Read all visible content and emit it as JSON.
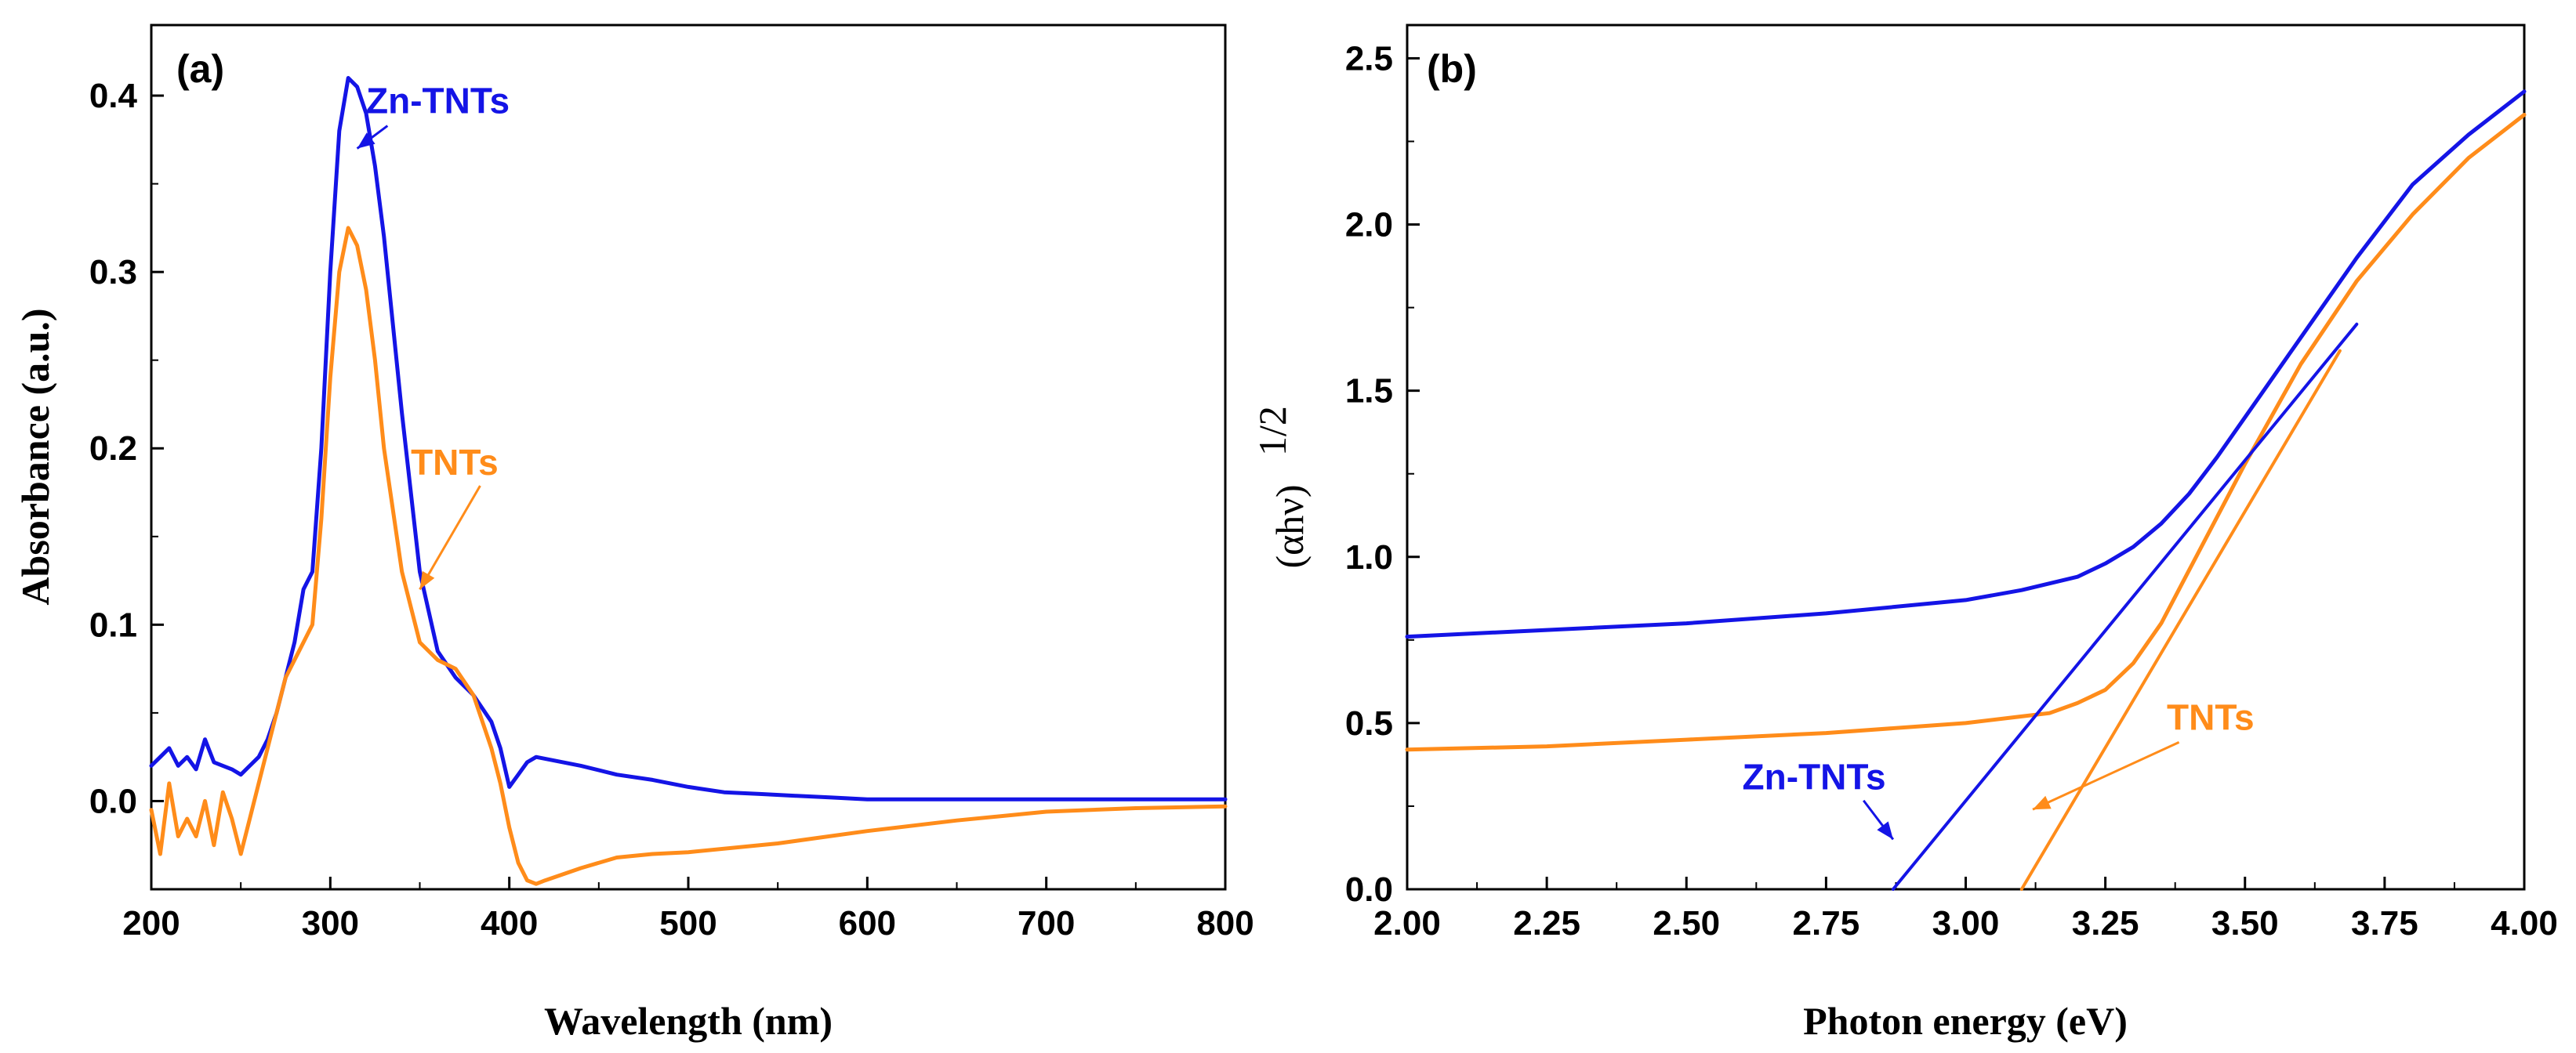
{
  "chart_data": [
    {
      "type": "line",
      "panel_label": "(a)",
      "xlabel": "Wavelength (nm)",
      "ylabel": "Absorbance (a.u.)",
      "xlim": [
        200,
        800
      ],
      "ylim": [
        -0.05,
        0.44
      ],
      "xticks": [
        200,
        300,
        400,
        500,
        600,
        700,
        800
      ],
      "xtick_labels": [
        "200",
        "300",
        "400",
        "500",
        "600",
        "700",
        "800"
      ],
      "yticks": [
        0.0,
        0.1,
        0.2,
        0.3,
        0.4
      ],
      "ytick_labels": [
        "0.0",
        "0.1",
        "0.2",
        "0.3",
        "0.4"
      ],
      "series": [
        {
          "name": "Zn-TNTs",
          "color": "#1414E6",
          "x": [
            200,
            205,
            210,
            215,
            220,
            225,
            230,
            235,
            240,
            245,
            250,
            255,
            260,
            265,
            270,
            275,
            280,
            285,
            290,
            295,
            300,
            305,
            310,
            315,
            320,
            325,
            330,
            340,
            350,
            360,
            370,
            380,
            390,
            395,
            400,
            405,
            410,
            415,
            420,
            440,
            460,
            480,
            500,
            520,
            540,
            560,
            580,
            600,
            620,
            650,
            700,
            750,
            800
          ],
          "y": [
            0.02,
            0.025,
            0.03,
            0.02,
            0.025,
            0.018,
            0.035,
            0.022,
            0.02,
            0.018,
            0.015,
            0.02,
            0.025,
            0.035,
            0.05,
            0.07,
            0.09,
            0.12,
            0.13,
            0.2,
            0.3,
            0.38,
            0.41,
            0.405,
            0.39,
            0.36,
            0.32,
            0.22,
            0.13,
            0.085,
            0.07,
            0.06,
            0.045,
            0.03,
            0.008,
            0.015,
            0.022,
            0.025,
            0.024,
            0.02,
            0.015,
            0.012,
            0.008,
            0.005,
            0.004,
            0.003,
            0.002,
            0.001,
            0.001,
            0.001,
            0.001,
            0.001,
            0.001
          ]
        },
        {
          "name": "TNTs",
          "color": "#FF8C1A",
          "x": [
            200,
            205,
            210,
            215,
            220,
            225,
            230,
            235,
            240,
            245,
            250,
            255,
            260,
            265,
            270,
            275,
            280,
            285,
            290,
            295,
            300,
            305,
            310,
            315,
            320,
            325,
            330,
            340,
            350,
            360,
            370,
            380,
            390,
            395,
            400,
            405,
            410,
            415,
            420,
            440,
            460,
            480,
            500,
            550,
            600,
            650,
            700,
            750,
            800
          ],
          "y": [
            -0.005,
            -0.03,
            0.01,
            -0.02,
            -0.01,
            -0.02,
            0.0,
            -0.025,
            0.005,
            -0.01,
            -0.03,
            -0.01,
            0.01,
            0.03,
            0.05,
            0.07,
            0.08,
            0.09,
            0.1,
            0.16,
            0.24,
            0.3,
            0.325,
            0.315,
            0.29,
            0.25,
            0.2,
            0.13,
            0.09,
            0.08,
            0.075,
            0.06,
            0.03,
            0.01,
            -0.015,
            -0.035,
            -0.045,
            -0.047,
            -0.045,
            -0.038,
            -0.032,
            -0.03,
            -0.029,
            -0.024,
            -0.017,
            -0.011,
            -0.006,
            -0.004,
            -0.003
          ]
        }
      ],
      "annotations": [
        {
          "text": "Zn-TNTs",
          "color": "#1414E6",
          "x": 320,
          "y": 0.39,
          "arrow_to": [
            315,
            0.37
          ]
        },
        {
          "text": "TNTs",
          "color": "#FF8C1A",
          "x": 345,
          "y": 0.185,
          "arrow_to": [
            350,
            0.12
          ]
        }
      ]
    },
    {
      "type": "line",
      "panel_label": "(b)",
      "xlabel": "Photon energy (eV)",
      "ylabel_base": "(αhν)",
      "ylabel_sup": "1/2",
      "xlim": [
        2.0,
        4.0
      ],
      "ylim": [
        0.0,
        2.6
      ],
      "xticks": [
        2.0,
        2.25,
        2.5,
        2.75,
        3.0,
        3.25,
        3.5,
        3.75,
        4.0
      ],
      "xtick_labels": [
        "2.00",
        "2.25",
        "2.50",
        "2.75",
        "3.00",
        "3.25",
        "3.50",
        "3.75",
        "4.00"
      ],
      "yticks": [
        0.0,
        0.5,
        1.0,
        1.5,
        2.0,
        2.5
      ],
      "ytick_labels": [
        "0.0",
        "0.5",
        "1.0",
        "1.5",
        "2.0",
        "2.5"
      ],
      "series": [
        {
          "name": "Zn-TNTs",
          "color": "#1414E6",
          "x": [
            2.0,
            2.25,
            2.5,
            2.75,
            3.0,
            3.1,
            3.2,
            3.25,
            3.3,
            3.35,
            3.4,
            3.45,
            3.5,
            3.6,
            3.7,
            3.8,
            3.9,
            4.0
          ],
          "y": [
            0.76,
            0.78,
            0.8,
            0.83,
            0.87,
            0.9,
            0.94,
            0.98,
            1.03,
            1.1,
            1.19,
            1.3,
            1.42,
            1.66,
            1.9,
            2.12,
            2.27,
            2.4
          ]
        },
        {
          "name": "TNTs",
          "color": "#FF8C1A",
          "x": [
            2.0,
            2.25,
            2.5,
            2.75,
            3.0,
            3.1,
            3.15,
            3.2,
            3.25,
            3.3,
            3.35,
            3.4,
            3.5,
            3.6,
            3.7,
            3.8,
            3.9,
            4.0
          ],
          "y": [
            0.42,
            0.43,
            0.45,
            0.47,
            0.5,
            0.52,
            0.53,
            0.56,
            0.6,
            0.68,
            0.8,
            0.96,
            1.28,
            1.58,
            1.83,
            2.03,
            2.2,
            2.33
          ]
        },
        {
          "name": "Zn-TNTs tangent",
          "color": "#1414E6",
          "x": [
            2.87,
            3.7
          ],
          "y": [
            0.0,
            1.7
          ]
        },
        {
          "name": "TNTs tangent",
          "color": "#FF8C1A",
          "x": [
            3.1,
            3.67
          ],
          "y": [
            0.0,
            1.62
          ]
        }
      ],
      "annotations": [
        {
          "text": "Zn-TNTs",
          "color": "#1414E6",
          "x": 2.6,
          "y": 0.3,
          "arrow_to": [
            2.87,
            0.15
          ]
        },
        {
          "text": "TNTs",
          "color": "#FF8C1A",
          "x": 3.36,
          "y": 0.48,
          "arrow_to": [
            3.12,
            0.24
          ]
        }
      ]
    }
  ]
}
